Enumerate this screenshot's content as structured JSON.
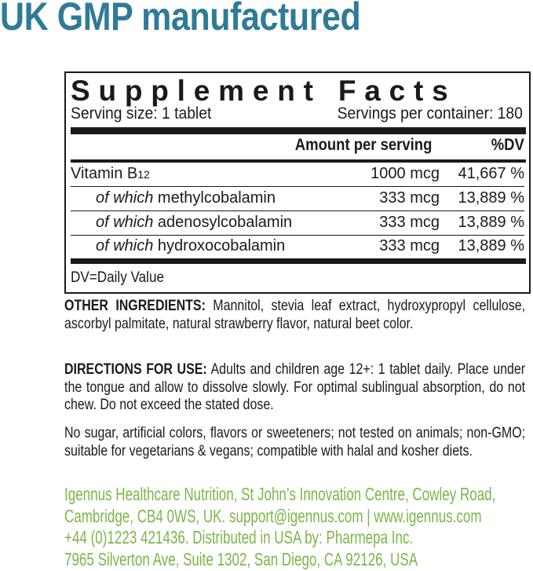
{
  "headline": "UK GMP manufactured",
  "facts": {
    "title": "Supplement Facts",
    "serving_size": "Serving size: 1 tablet",
    "servings_per_container": "Servings per container: 180",
    "amount_header": "Amount per serving",
    "dv_header": "%DV",
    "rows": [
      {
        "prefix": "",
        "name": "Vitamin B",
        "sub": "12",
        "amount": "1000 mcg",
        "dv": "41,667 %"
      },
      {
        "prefix": "of which",
        "name": " methylcobalamin",
        "amount": "333 mcg",
        "dv": "13,889 %"
      },
      {
        "prefix": "of which",
        "name": " adenosylcobalamin",
        "amount": "333 mcg",
        "dv": "13,889 %"
      },
      {
        "prefix": "of which",
        "name": " hydroxocobalamin",
        "amount": "333 mcg",
        "dv": "13,889 %"
      }
    ],
    "dv_note": "DV=Daily Value"
  },
  "other_ingredients": {
    "label": "OTHER INGREDIENTS:",
    "text": " Mannitol, stevia leaf extract, hydroxypropyl cellulose, ascorbyl palmitate, natural strawberry flavor, natural beet color."
  },
  "directions": {
    "label": "DIRECTIONS FOR USE:",
    "text": " Adults and children age 12+: 1 tablet daily. Place under the tongue and allow to dissolve slowly. For optimal sublingual absorption, do not chew. Do not exceed the stated dose."
  },
  "claims": "No sugar, artificial colors, flavors or sweeteners; not tested on animals; non-GMO; suitable for vegetarians & vegans; compatible with halal and kosher diets.",
  "company": [
    "Igennus Healthcare Nutrition, St John’s Innovation Centre, Cowley Road,",
    "Cambridge, CB4 0WS, UK. support@igennus.com | www.igennus.com",
    "+44 (0)1223 421436. Distributed in USA by: Pharmepa Inc.",
    "7965 Silverton Ave, Suite 1302, San Diego, CA 92126, USA"
  ],
  "colors": {
    "headline": "#2f7b97",
    "company": "#7ab648",
    "text": "#1a1a1a"
  }
}
